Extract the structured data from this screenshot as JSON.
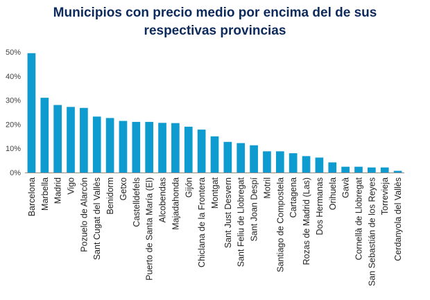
{
  "chart_data": {
    "type": "bar",
    "title_line1": "Municipios con precio medio por encima del de sus",
    "title_line2": "respectivas provincias",
    "xlabel": "",
    "ylabel": "",
    "ylim": [
      0,
      50
    ],
    "yticks": [
      0,
      10,
      20,
      30,
      40,
      50
    ],
    "ytick_labels": [
      "0%",
      "10%",
      "20%",
      "30%",
      "40%",
      "50%"
    ],
    "grid": false,
    "bar_color": "#0e9bd0",
    "axis_color": "#8c8c8c",
    "categories": [
      "Barcelona",
      "Marbella",
      "Madrid",
      "Vigo",
      "Pozuelo de Alarcón",
      "Sant Cugat del Vallès",
      "Benidorm",
      "Getxo",
      "Castelldefels",
      "Puerto de Santa María (El)",
      "Alcobendas",
      "Majadahonda",
      "Gijón",
      "Chiclana de la Frontera",
      "Montgat",
      "Sant Just Desvern",
      "Sant Feliu de Llobregat",
      "Sant Joan Despí",
      "Motril",
      "Santiago de Compostela",
      "Cartagena",
      "Rozas de Madrid (Las)",
      "Dos Hermanas",
      "Orihuela",
      "Gavà",
      "Cornellà de Llobregat",
      "San Sebastián de los Reyes",
      "Torrevieja",
      "Cerdanyola del Vallès"
    ],
    "values": [
      49.5,
      31,
      28,
      27.2,
      26.8,
      23.2,
      22.6,
      21.4,
      21,
      21,
      20.6,
      20.5,
      19,
      17.8,
      15,
      12.7,
      12.2,
      11.3,
      8.8,
      8.8,
      8,
      6.8,
      6.2,
      4.2,
      2.4,
      2.4,
      2.1,
      2.1,
      0.7
    ]
  }
}
